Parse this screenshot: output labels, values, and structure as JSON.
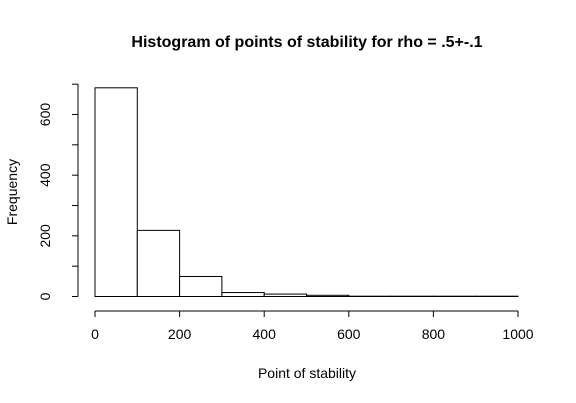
{
  "chart_data": {
    "type": "bar",
    "title": "Histogram of points of stability for rho = .5+-.1",
    "xlabel": "Point of stability",
    "ylabel": "Frequency",
    "bins": [
      {
        "from": 0,
        "to": 100,
        "count": 688
      },
      {
        "from": 100,
        "to": 200,
        "count": 218
      },
      {
        "from": 200,
        "to": 300,
        "count": 66
      },
      {
        "from": 300,
        "to": 400,
        "count": 13
      },
      {
        "from": 400,
        "to": 500,
        "count": 8
      },
      {
        "from": 500,
        "to": 600,
        "count": 4
      },
      {
        "from": 600,
        "to": 700,
        "count": 1
      },
      {
        "from": 700,
        "to": 800,
        "count": 1
      },
      {
        "from": 800,
        "to": 900,
        "count": 1
      },
      {
        "from": 900,
        "to": 1000,
        "count": 1
      }
    ],
    "xticks": [
      0,
      200,
      400,
      600,
      800,
      1000
    ],
    "yticks": [
      0,
      200,
      400,
      600
    ],
    "xlim": [
      0,
      1000
    ],
    "ylim": [
      0,
      700
    ],
    "grid": false,
    "bar_fill": "#ffffff",
    "bar_stroke": "#000000"
  }
}
